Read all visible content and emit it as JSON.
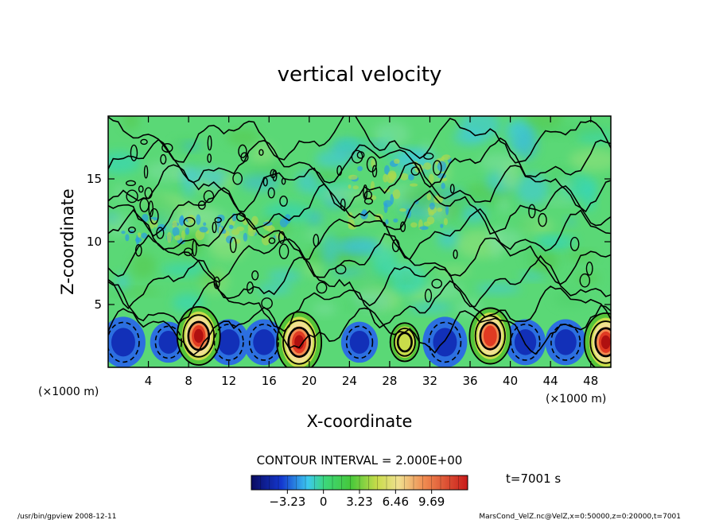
{
  "chart_data": {
    "type": "heatmap",
    "title": "vertical velocity",
    "xlabel": "X-coordinate",
    "ylabel": "Z-coordinate",
    "x_unit": "(×1000 m)",
    "y_unit": "(×1000 m)",
    "xlim": [
      0,
      50
    ],
    "ylim": [
      0,
      20
    ],
    "x_ticks": [
      4,
      8,
      12,
      16,
      20,
      24,
      28,
      32,
      36,
      40,
      44,
      48
    ],
    "y_ticks": [
      5,
      10,
      15
    ],
    "contour_interval_text": "CONTOUR INTERVAL = 2.000E+00",
    "time_label": "t=7001 s",
    "colorbar": {
      "range": [
        -6.46,
        12.92
      ],
      "tick_values": [
        -3.23,
        0,
        3.23,
        6.46,
        9.69
      ],
      "tick_labels": [
        "−3.23",
        "0",
        "3.23",
        "6.46",
        "9.69"
      ]
    },
    "updrafts": [
      {
        "x": 9.0,
        "z": 2.5,
        "peak": 11
      },
      {
        "x": 19.0,
        "z": 2.0,
        "peak": 12
      },
      {
        "x": 29.5,
        "z": 2.0,
        "peak": 3
      },
      {
        "x": 38.0,
        "z": 2.5,
        "peak": 10
      },
      {
        "x": 49.5,
        "z": 2.0,
        "peak": 11
      }
    ],
    "downdrafts": [
      {
        "x": 1.5,
        "z": 2.0,
        "min": -4.5
      },
      {
        "x": 6.0,
        "z": 2.0,
        "min": -3.5
      },
      {
        "x": 12.0,
        "z": 2.0,
        "min": -4.0
      },
      {
        "x": 15.5,
        "z": 2.0,
        "min": -4.0
      },
      {
        "x": 25.0,
        "z": 2.0,
        "min": -3.5
      },
      {
        "x": 33.5,
        "z": 2.0,
        "min": -4.5
      },
      {
        "x": 41.5,
        "z": 2.0,
        "min": -4.0
      },
      {
        "x": 45.5,
        "z": 2.0,
        "min": -4.0
      }
    ]
  },
  "footer": {
    "left": "/usr/bin/gpview   2008-12-11",
    "right": "MarsCond_VelZ.nc@VelZ,x=0:50000,z=0:20000,t=7001"
  }
}
